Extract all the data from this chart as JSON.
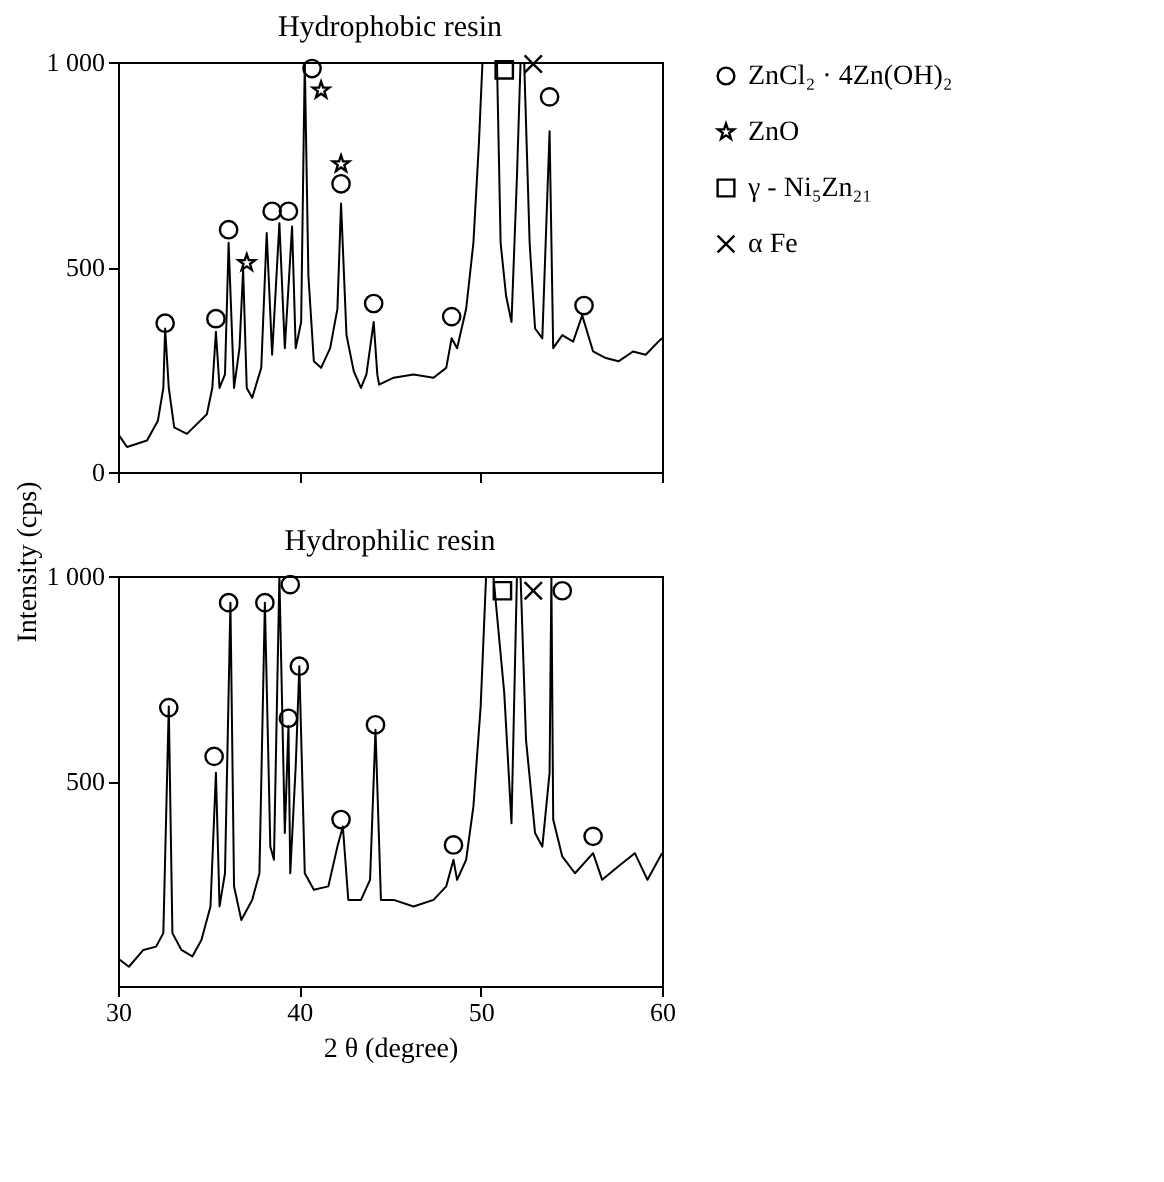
{
  "chart_data": [
    {
      "type": "line",
      "title": "Hydrophobic resin",
      "ylabel": "Intensity (cps)",
      "xlim": [
        30,
        60
      ],
      "xticks": [
        30,
        40,
        50,
        60
      ],
      "ylim": [
        0,
        1000
      ],
      "yticks": [
        0,
        500,
        {
          "value": 1000,
          "label": "1 000"
        }
      ],
      "tick_labels": "y",
      "grid": false,
      "legend": "right",
      "series": [
        {
          "color": "#000000",
          "marker": "none",
          "line_style": "solid",
          "x": [
            30,
            30.5,
            31.6,
            32.2,
            32.5,
            32.6,
            32.8,
            33.1,
            33.8,
            34.9,
            35.2,
            35.4,
            35.6,
            35.9,
            36.1,
            36.4,
            36.7,
            36.9,
            37.1,
            37.4,
            37.9,
            38.2,
            38.5,
            38.9,
            39.2,
            39.6,
            39.8,
            40.1,
            40.3,
            40.5,
            40.8,
            41.2,
            41.7,
            42.1,
            42.3,
            42.6,
            43.0,
            43.4,
            43.7,
            44.1,
            44.3,
            44.4,
            45.2,
            46.3,
            47.4,
            48.1,
            48.4,
            48.7,
            49.2,
            49.6,
            49.9,
            50.1,
            50.5,
            50.9,
            51.1,
            51.4,
            51.7,
            52.0,
            52.2,
            52.4,
            52.7,
            53.0,
            53.4,
            53.8,
            54.0,
            54.5,
            55.1,
            55.6,
            56.2,
            56.9,
            57.6,
            58.4,
            59.1,
            59.8,
            60
          ],
          "values": [
            93,
            61,
            77,
            125,
            205,
            350,
            205,
            109,
            93,
            141,
            205,
            342,
            205,
            238,
            559,
            205,
            302,
            494,
            205,
            181,
            254,
            583,
            286,
            607,
            302,
            599,
            302,
            366,
            1000,
            478,
            270,
            254,
            302,
            398,
            655,
            334,
            246,
            205,
            238,
            366,
            238,
            213,
            230,
            238,
            230,
            254,
            326,
            302,
            398,
            559,
            799,
            1000,
            1000,
            1000,
            559,
            430,
            366,
            719,
            1000,
            1000,
            559,
            350,
            326,
            831,
            302,
            334,
            318,
            382,
            294,
            278,
            270,
            294,
            286,
            318,
            326
          ]
        },
        {
          "type": "scatter",
          "name": "ZnCl₂ · 4Zn(OH)₂",
          "color": "#000000",
          "marker": "circle",
          "x": [
            32.6,
            35.4,
            36.1,
            38.5,
            39.4,
            40.7,
            42.3,
            44.1,
            48.4,
            53.8,
            55.7
          ],
          "values": [
            363,
            374,
            591,
            636,
            636,
            984,
            703,
            411,
            379,
            915,
            406
          ]
        },
        {
          "type": "scatter",
          "name": "ZnO",
          "color": "#000000",
          "marker": "star",
          "x": [
            37.1,
            41.2,
            42.3
          ],
          "values": [
            510,
            931,
            751
          ]
        },
        {
          "type": "scatter",
          "name": "γ - Ni₅Zn₂₁",
          "color": "#000000",
          "marker": "square",
          "x": [
            51.3
          ],
          "values": [
            981
          ]
        },
        {
          "type": "scatter",
          "name": "α Fe",
          "color": "#000000",
          "marker": "cross",
          "x": [
            52.9
          ],
          "values": [
            995
          ]
        }
      ]
    },
    {
      "type": "line",
      "title": "Hydrophilic resin",
      "xlabel": "2 θ (degree)",
      "xlim": [
        30,
        60
      ],
      "xticks": [
        30,
        40,
        50,
        60
      ],
      "ylim": [
        0,
        1000
      ],
      "yticks": [
        500,
        {
          "value": 1000,
          "label": "1 000"
        }
      ],
      "grid": false,
      "series": [
        {
          "color": "#000000",
          "marker": "none",
          "line_style": "solid",
          "x": [
            30.1,
            30.6,
            31.4,
            32.1,
            32.5,
            32.8,
            33.0,
            33.5,
            34.1,
            34.6,
            35.1,
            35.4,
            35.6,
            35.9,
            36.2,
            36.4,
            36.8,
            37.4,
            37.8,
            38.1,
            38.4,
            38.6,
            38.9,
            39.2,
            39.4,
            39.5,
            39.8,
            40.0,
            40.3,
            40.8,
            41.6,
            42.1,
            42.4,
            42.7,
            43.4,
            43.9,
            44.2,
            44.5,
            45.2,
            46.3,
            47.4,
            48.1,
            48.5,
            48.7,
            49.2,
            49.6,
            50.0,
            50.3,
            50.7,
            51.3,
            51.7,
            52.0,
            52.2,
            52.5,
            53.0,
            53.4,
            53.8,
            53.9,
            54.0,
            54.5,
            55.2,
            56.2,
            56.7,
            57.6,
            58.5,
            59.2,
            60
          ],
          "values": [
            64,
            47,
            88,
            96,
            129,
            682,
            129,
            88,
            72,
            112,
            194,
            520,
            194,
            275,
            935,
            243,
            161,
            210,
            275,
            935,
            340,
            308,
            1000,
            373,
            634,
            275,
            536,
            780,
            275,
            235,
            243,
            340,
            389,
            210,
            210,
            259,
            625,
            210,
            210,
            194,
            210,
            243,
            308,
            259,
            308,
            438,
            682,
            1000,
            1000,
            715,
            397,
            1000,
            1000,
            601,
            373,
            340,
            520,
            1000,
            406,
            316,
            275,
            324,
            259,
            292,
            324,
            259,
            324
          ]
        },
        {
          "type": "scatter",
          "color": "#000000",
          "marker": "circle",
          "x": [
            32.8,
            35.3,
            36.1,
            38.1,
            39.5,
            39.4,
            40.0,
            42.3,
            44.2,
            48.5,
            54.5,
            56.2
          ],
          "values": [
            679,
            560,
            935,
            935,
            979,
            653,
            780,
            406,
            637,
            344,
            964,
            365
          ]
        },
        {
          "type": "scatter",
          "color": "#000000",
          "marker": "square",
          "x": [
            51.2
          ],
          "values": [
            964
          ]
        },
        {
          "type": "scatter",
          "color": "#000000",
          "marker": "cross",
          "x": [
            52.9
          ],
          "values": [
            964
          ]
        }
      ]
    }
  ]
}
